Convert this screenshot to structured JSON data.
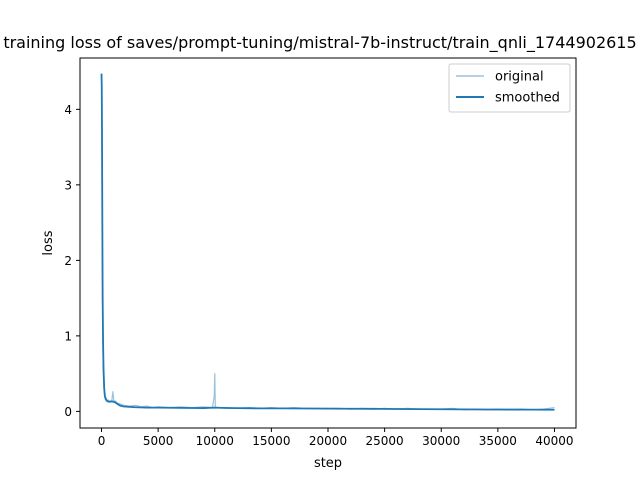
{
  "chart_data": {
    "type": "line",
    "title": "training loss of saves/prompt-tuning/mistral-7b-instruct/train_qnli_1744902615",
    "xlabel": "step",
    "ylabel": "loss",
    "xlim": [
      -1900,
      41900
    ],
    "ylim": [
      -0.22,
      4.68
    ],
    "x_ticks": [
      0,
      5000,
      10000,
      15000,
      20000,
      25000,
      30000,
      35000,
      40000
    ],
    "y_ticks": [
      0,
      1,
      2,
      3,
      4
    ],
    "x_tick_labels": [
      "0",
      "5000",
      "10000",
      "15000",
      "20000",
      "25000",
      "30000",
      "35000",
      "40000"
    ],
    "y_tick_labels": [
      "0",
      "1",
      "2",
      "3",
      "4"
    ],
    "grid": false,
    "legend_position": "upper right",
    "series": [
      {
        "name": "original",
        "color": "#1f77b4",
        "style": "thin, semi-transparent",
        "x": [
          0,
          20,
          40,
          60,
          80,
          100,
          140,
          180,
          240,
          300,
          400,
          500,
          600,
          700,
          800,
          900,
          1000,
          1100,
          1200,
          1400,
          1600,
          1800,
          2000,
          2500,
          3000,
          3500,
          4000,
          4500,
          5000,
          6000,
          7000,
          8000,
          9000,
          9800,
          9950,
          10000,
          10050,
          10200,
          11000,
          12000,
          13000,
          14000,
          15000,
          16000,
          17000,
          18000,
          19000,
          20000,
          21000,
          22000,
          23000,
          24000,
          25000,
          26000,
          27000,
          28000,
          29000,
          30000,
          31000,
          32000,
          33000,
          34000,
          35000,
          36000,
          37000,
          38000,
          39000,
          40000
        ],
        "y": [
          4.48,
          4.2,
          3.5,
          2.6,
          1.8,
          1.2,
          0.7,
          0.4,
          0.25,
          0.17,
          0.14,
          0.13,
          0.15,
          0.12,
          0.14,
          0.13,
          0.26,
          0.12,
          0.14,
          0.11,
          0.1,
          0.09,
          0.08,
          0.07,
          0.08,
          0.06,
          0.07,
          0.05,
          0.06,
          0.05,
          0.06,
          0.05,
          0.06,
          0.05,
          0.2,
          0.5,
          0.06,
          0.05,
          0.05,
          0.04,
          0.05,
          0.04,
          0.05,
          0.04,
          0.05,
          0.04,
          0.04,
          0.04,
          0.04,
          0.03,
          0.04,
          0.03,
          0.04,
          0.03,
          0.04,
          0.03,
          0.03,
          0.03,
          0.04,
          0.02,
          0.03,
          0.02,
          0.03,
          0.02,
          0.03,
          0.02,
          0.03,
          0.05
        ]
      },
      {
        "name": "smoothed",
        "color": "#1f77b4",
        "style": "solid",
        "x": [
          0,
          20,
          40,
          60,
          80,
          100,
          140,
          180,
          240,
          300,
          400,
          500,
          600,
          800,
          1000,
          1200,
          1400,
          1600,
          1800,
          2000,
          2500,
          3000,
          4000,
          5000,
          6000,
          7000,
          8000,
          9000,
          10000,
          11000,
          12000,
          14000,
          16000,
          18000,
          20000,
          22000,
          24000,
          26000,
          28000,
          30000,
          32000,
          34000,
          36000,
          38000,
          40000
        ],
        "y": [
          4.47,
          4.3,
          3.8,
          3.0,
          2.2,
          1.5,
          0.9,
          0.55,
          0.3,
          0.2,
          0.16,
          0.14,
          0.13,
          0.13,
          0.13,
          0.12,
          0.1,
          0.08,
          0.07,
          0.065,
          0.06,
          0.055,
          0.05,
          0.05,
          0.048,
          0.046,
          0.045,
          0.044,
          0.05,
          0.045,
          0.043,
          0.04,
          0.04,
          0.038,
          0.037,
          0.035,
          0.034,
          0.032,
          0.03,
          0.028,
          0.027,
          0.025,
          0.024,
          0.023,
          0.022
        ]
      }
    ]
  }
}
